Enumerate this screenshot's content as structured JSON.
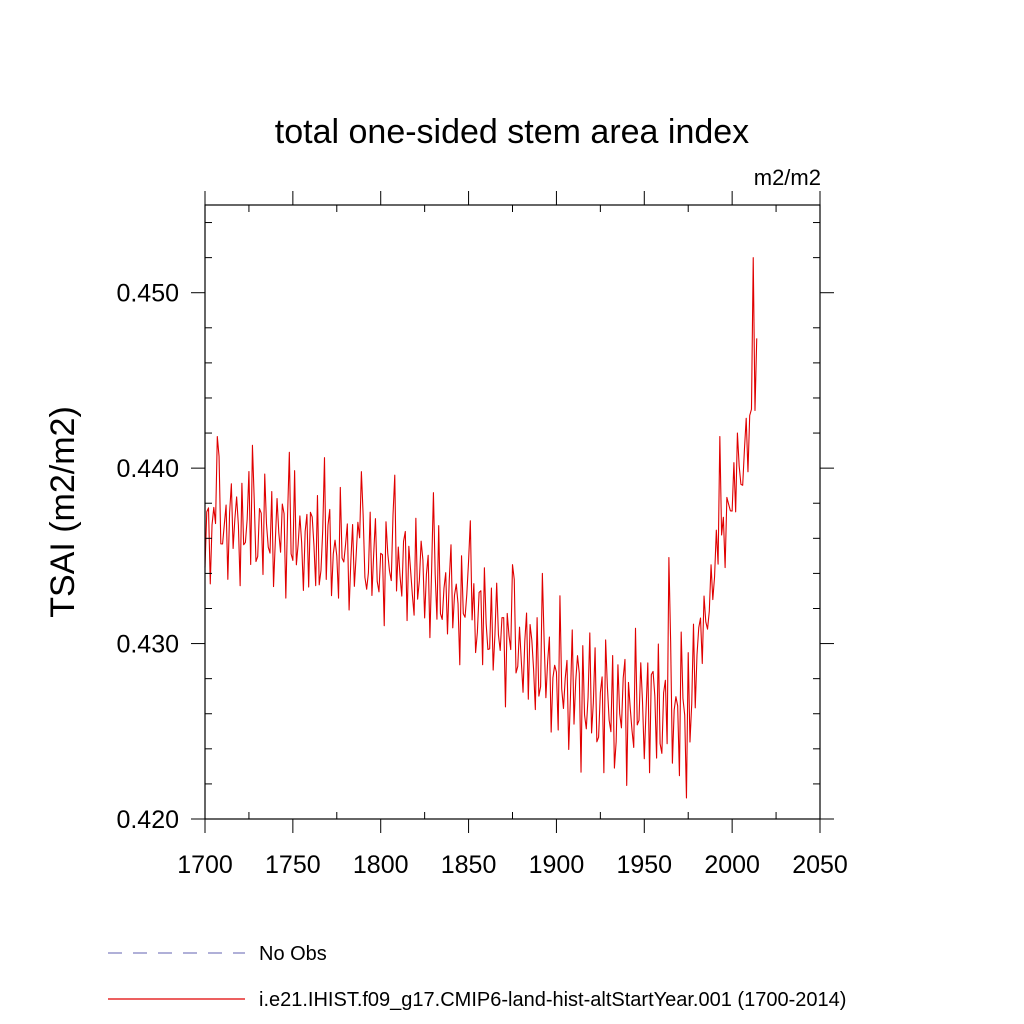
{
  "chart_data": {
    "type": "line",
    "title": "total one-sided stem area index",
    "units_label": "m2/m2",
    "xlabel": "",
    "ylabel": "TSAI  (m2/m2)",
    "xlim": [
      1700,
      2050
    ],
    "ylim": [
      0.42,
      0.455
    ],
    "x_ticks": [
      1700,
      1750,
      1800,
      1850,
      1900,
      1950,
      2000,
      2050
    ],
    "x_tick_labels": [
      "1700",
      "1750",
      "1800",
      "1850",
      "1900",
      "1950",
      "2000",
      "2050"
    ],
    "y_ticks": [
      0.42,
      0.43,
      0.44,
      0.45
    ],
    "y_tick_labels": [
      "0.420",
      "0.430",
      "0.440",
      "0.450"
    ],
    "grid": false,
    "legend_position": "bottom",
    "legend": [
      {
        "label": "No Obs",
        "color": "#8080c0",
        "style": "dashed"
      },
      {
        "label": "i.e21.IHIST.f09_g17.CMIP6-land-hist-altStartYear.001 (1700-2014)",
        "color": "#e00000",
        "style": "solid"
      }
    ],
    "series": [
      {
        "color": "#e00000",
        "anchors": [
          [
            1700,
            0.4365
          ],
          [
            1710,
            0.4368
          ],
          [
            1725,
            0.4367
          ],
          [
            1750,
            0.436
          ],
          [
            1775,
            0.4353
          ],
          [
            1800,
            0.4345
          ],
          [
            1825,
            0.4338
          ],
          [
            1850,
            0.432
          ],
          [
            1875,
            0.43
          ],
          [
            1900,
            0.428
          ],
          [
            1920,
            0.4268
          ],
          [
            1935,
            0.4262
          ],
          [
            1950,
            0.4265
          ],
          [
            1965,
            0.4262
          ],
          [
            1975,
            0.427
          ],
          [
            1980,
            0.4295
          ],
          [
            1985,
            0.4315
          ],
          [
            1990,
            0.434
          ],
          [
            1995,
            0.4365
          ],
          [
            2000,
            0.438
          ],
          [
            2005,
            0.4395
          ],
          [
            2010,
            0.442
          ],
          [
            2014,
            0.446
          ]
        ],
        "spikes": [
          [
            1707,
            0.4418
          ],
          [
            1727,
            0.4413
          ],
          [
            1748,
            0.4409
          ],
          [
            1768,
            0.4406
          ],
          [
            1789,
            0.4398
          ],
          [
            1808,
            0.4396
          ],
          [
            1830,
            0.4386
          ],
          [
            1851,
            0.437
          ],
          [
            1875,
            0.4345
          ],
          [
            1892,
            0.434
          ],
          [
            1933,
            0.4229
          ],
          [
            1964,
            0.4349
          ],
          [
            1974,
            0.4212
          ],
          [
            1993,
            0.4418
          ],
          [
            2003,
            0.442
          ],
          [
            2012,
            0.452
          ],
          [
            2014,
            0.4474
          ]
        ]
      }
    ]
  }
}
